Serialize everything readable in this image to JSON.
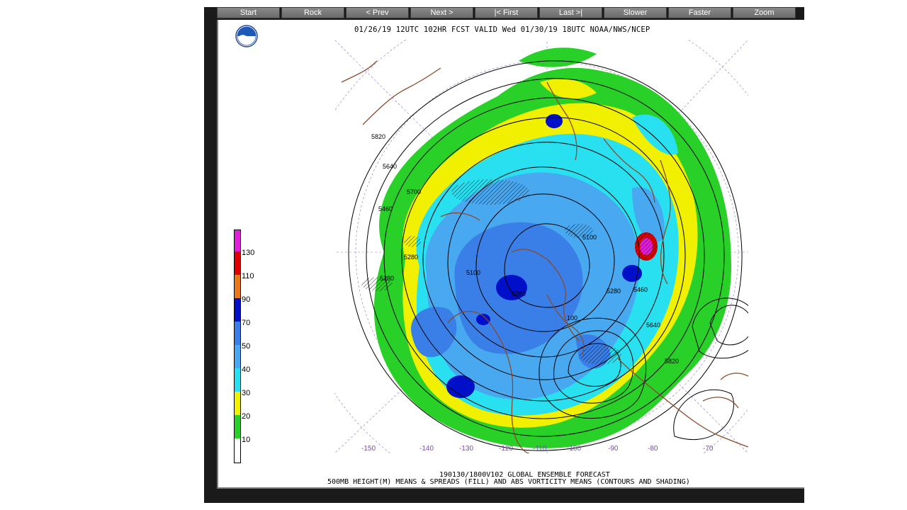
{
  "toolbar": {
    "buttons": [
      "Start",
      "Rock",
      "< Prev",
      "Next >",
      "|< First",
      "Last >|",
      "Slower",
      "Faster",
      "Zoom"
    ]
  },
  "header": {
    "logo_icon": "noaa-logo-icon",
    "title": "01/26/19 12UTC 102HR FCST VALID Wed 01/30/19 18UTC NOAA/NWS/NCEP"
  },
  "legend": {
    "labels": [
      "130",
      "110",
      "90",
      "70",
      "50",
      "40",
      "30",
      "20",
      "10"
    ],
    "colors": [
      "#e020d8",
      "#e00000",
      "#e87818",
      "#0010c8",
      "#3a7fe8",
      "#48a8f0",
      "#28e0f0",
      "#f0f000",
      "#28d028",
      "#ffffff"
    ]
  },
  "map": {
    "contour_labels": [
      "5820",
      "5640",
      "5700",
      "5460",
      "5280",
      "5100",
      "5280",
      "5460",
      "5640",
      "5820",
      "5100",
      "5280",
      "5280",
      "100"
    ],
    "longitude_labels": [
      "-150",
      "-140",
      "-130",
      "-120",
      "-110",
      "-100",
      "-90",
      "-80",
      "-70"
    ]
  },
  "footer": {
    "line1": "190130/1800V102 GLOBAL ENSEMBLE FORECAST",
    "line2": "500MB HEIGHT(M) MEANS & SPREADS (FILL) AND ABS VORTICITY MEANS (CONTOURS AND SHADING)"
  },
  "colors": {
    "coast": "#8b4a2a",
    "grid": "#9070c0",
    "frame": "#1a1a1a"
  }
}
